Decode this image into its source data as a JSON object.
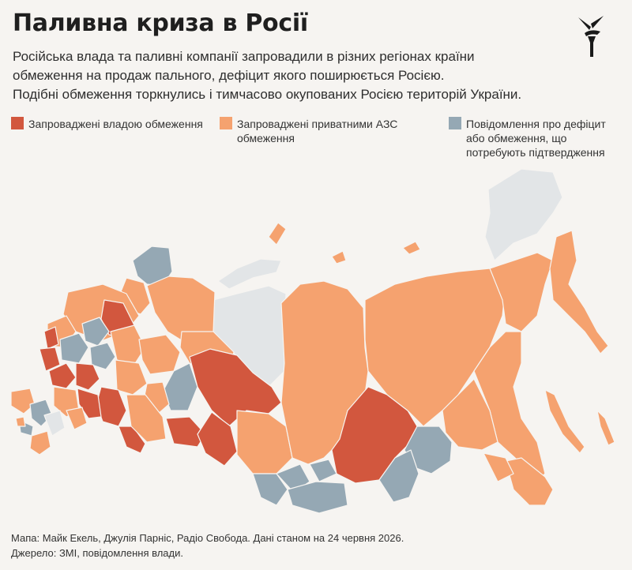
{
  "header": {
    "title": "Паливна криза в Росії",
    "subtitle_lines": [
      "Російська влада та паливні компанії запровадили в різних регіонах країни",
      "обмеження на продаж пального, дефіцит якого поширюється Росією.",
      "Подібні обмеження торкнулись і тимчасово окупованих Росією територій України."
    ]
  },
  "logo": {
    "icon": "liberty-torch-logo-icon",
    "color": "#1a1a1a"
  },
  "legend": {
    "items": [
      {
        "label": "Запроваджені владою обмеження",
        "color": "#d2573e"
      },
      {
        "label": "Запроваджені приватними АЗС\nобмеження",
        "color": "#f5a26f"
      },
      {
        "label": "Повідомлення про дефіцит\nабо обмеження, що\nпотребують підтвердження",
        "color": "#95a8b4"
      }
    ]
  },
  "map": {
    "no_data_color": "#e2e5e7",
    "background": "#f6f4f1"
  },
  "source": {
    "line1": "Мапа: Майк Екель, Джулія Парніс, Радіо Свобода. Дані станом на 24 червня 2026.",
    "line2": "Джерело: ЗМІ, повідомлення влади."
  }
}
